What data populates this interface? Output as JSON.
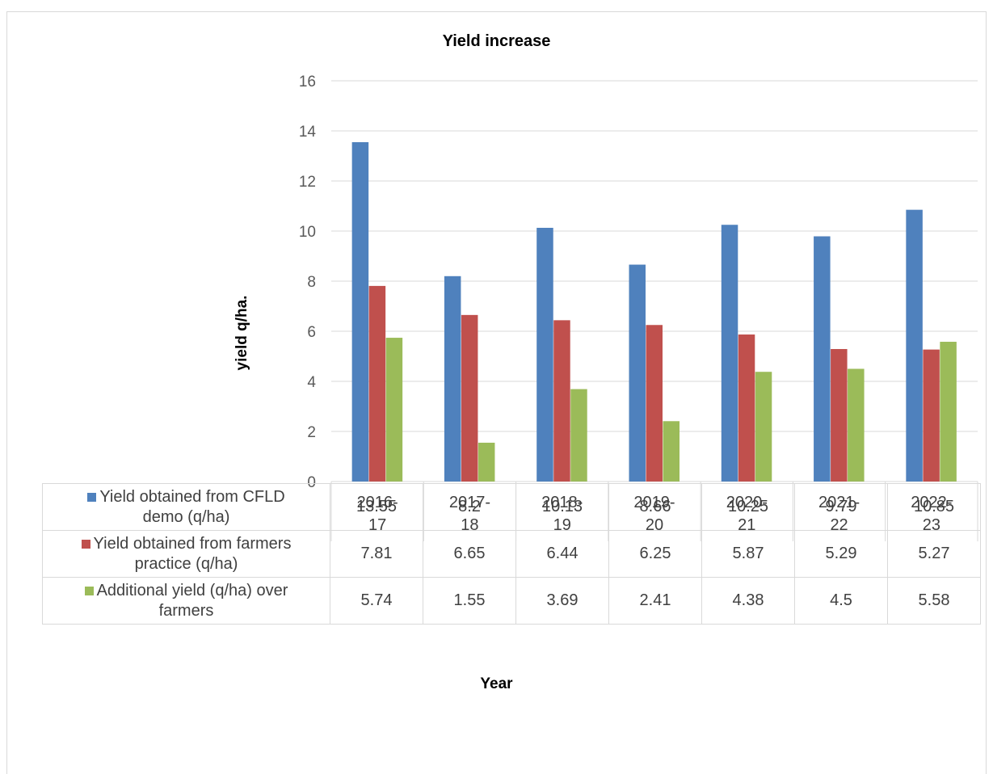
{
  "chart_data": {
    "type": "bar",
    "title": "Yield increase",
    "ylabel": "yield q/ha.",
    "xlabel": "Year",
    "ylim": [
      0,
      16
    ],
    "yticks": [
      0,
      2,
      4,
      6,
      8,
      10,
      12,
      14,
      16
    ],
    "grid": true,
    "legend": "data-table",
    "categories": [
      "2016-17",
      "2017-18",
      "2018-19",
      "2019-20",
      "2020-21",
      "2021-22",
      "2022-23"
    ],
    "category_lines": [
      [
        "2016-",
        "17"
      ],
      [
        "2017-",
        "18"
      ],
      [
        "2018-",
        "19"
      ],
      [
        "2019-",
        "20"
      ],
      [
        "2020-",
        "21"
      ],
      [
        "2021-",
        "22"
      ],
      [
        "2022-",
        "23"
      ]
    ],
    "series": [
      {
        "name": "Yield obtained from CFLD demo (q/ha)",
        "name_lines": [
          "Yield obtained from CFLD",
          "demo (q/ha)"
        ],
        "color": "#4f81bd",
        "values": [
          13.55,
          8.2,
          10.13,
          8.66,
          10.25,
          9.79,
          10.85
        ]
      },
      {
        "name": "Yield obtained from farmers practice (q/ha)",
        "name_lines": [
          "Yield obtained from farmers",
          "practice (q/ha)"
        ],
        "color": "#c0504d",
        "values": [
          7.81,
          6.65,
          6.44,
          6.25,
          5.87,
          5.29,
          5.27
        ]
      },
      {
        "name": "Additional yield (q/ha) over farmers",
        "name_lines": [
          "Additional yield (q/ha) over",
          "farmers"
        ],
        "color": "#9bbb59",
        "values": [
          5.74,
          1.55,
          3.69,
          2.41,
          4.38,
          4.5,
          5.58
        ]
      }
    ]
  }
}
